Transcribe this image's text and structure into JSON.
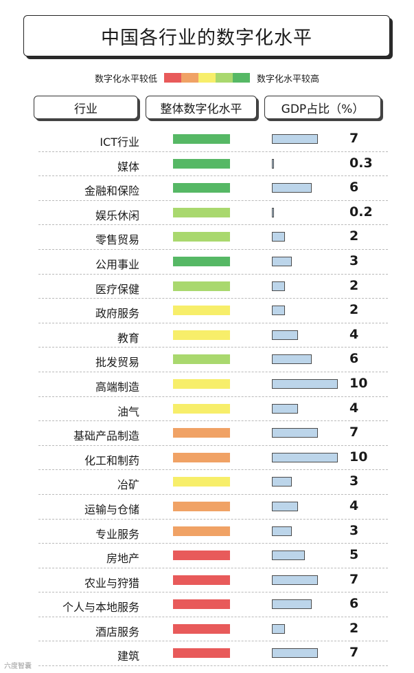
{
  "title": "中国各行业的数字化水平",
  "legend": {
    "low_label": "数字化水平较低",
    "high_label": "数字化水平较高",
    "scale_colors": [
      "#e85a5a",
      "#f0a265",
      "#f7ee6a",
      "#a9d86e",
      "#56b865"
    ]
  },
  "headers": {
    "industry": "行业",
    "digital_level": "整体数字化水平",
    "gdp_share": "GDP占比（%）"
  },
  "watermark": "六度智囊",
  "chart_data": {
    "type": "table",
    "title": "中国各行业的数字化水平",
    "columns": [
      "行业",
      "整体数字化水平",
      "GDP占比（%）"
    ],
    "digital_level_scale": {
      "1": "#e85a5a",
      "2": "#f0a265",
      "3": "#f7ee6a",
      "4": "#a9d86e",
      "5": "#56b865"
    },
    "gdp_bar_max": 10,
    "rows": [
      {
        "industry": "ICT行业",
        "level": 5,
        "gdp": 7,
        "gdp_label": "7"
      },
      {
        "industry": "媒体",
        "level": 5,
        "gdp": 0.3,
        "gdp_label": "0.3"
      },
      {
        "industry": "金融和保险",
        "level": 5,
        "gdp": 6,
        "gdp_label": "6"
      },
      {
        "industry": "娱乐休闲",
        "level": 4,
        "gdp": 0.2,
        "gdp_label": "0.2"
      },
      {
        "industry": "零售贸易",
        "level": 4,
        "gdp": 2,
        "gdp_label": "2"
      },
      {
        "industry": "公用事业",
        "level": 5,
        "gdp": 3,
        "gdp_label": "3"
      },
      {
        "industry": "医疗保健",
        "level": 4,
        "gdp": 2,
        "gdp_label": "2"
      },
      {
        "industry": "政府服务",
        "level": 3,
        "gdp": 2,
        "gdp_label": "2"
      },
      {
        "industry": "教育",
        "level": 3,
        "gdp": 4,
        "gdp_label": "4"
      },
      {
        "industry": "批发贸易",
        "level": 4,
        "gdp": 6,
        "gdp_label": "6"
      },
      {
        "industry": "高端制造",
        "level": 3,
        "gdp": 10,
        "gdp_label": "10"
      },
      {
        "industry": "油气",
        "level": 3,
        "gdp": 4,
        "gdp_label": "4"
      },
      {
        "industry": "基础产品制造",
        "level": 2,
        "gdp": 7,
        "gdp_label": "7"
      },
      {
        "industry": "化工和制药",
        "level": 2,
        "gdp": 10,
        "gdp_label": "10"
      },
      {
        "industry": "冶矿",
        "level": 3,
        "gdp": 3,
        "gdp_label": "3"
      },
      {
        "industry": "运输与仓储",
        "level": 2,
        "gdp": 4,
        "gdp_label": "4"
      },
      {
        "industry": "专业服务",
        "level": 2,
        "gdp": 3,
        "gdp_label": "3"
      },
      {
        "industry": "房地产",
        "level": 1,
        "gdp": 5,
        "gdp_label": "5"
      },
      {
        "industry": "农业与狩猎",
        "level": 1,
        "gdp": 7,
        "gdp_label": "7"
      },
      {
        "industry": "个人与本地服务",
        "level": 1,
        "gdp": 6,
        "gdp_label": "6"
      },
      {
        "industry": "酒店服务",
        "level": 1,
        "gdp": 2,
        "gdp_label": "2"
      },
      {
        "industry": "建筑",
        "level": 1,
        "gdp": 7,
        "gdp_label": "7"
      }
    ]
  }
}
